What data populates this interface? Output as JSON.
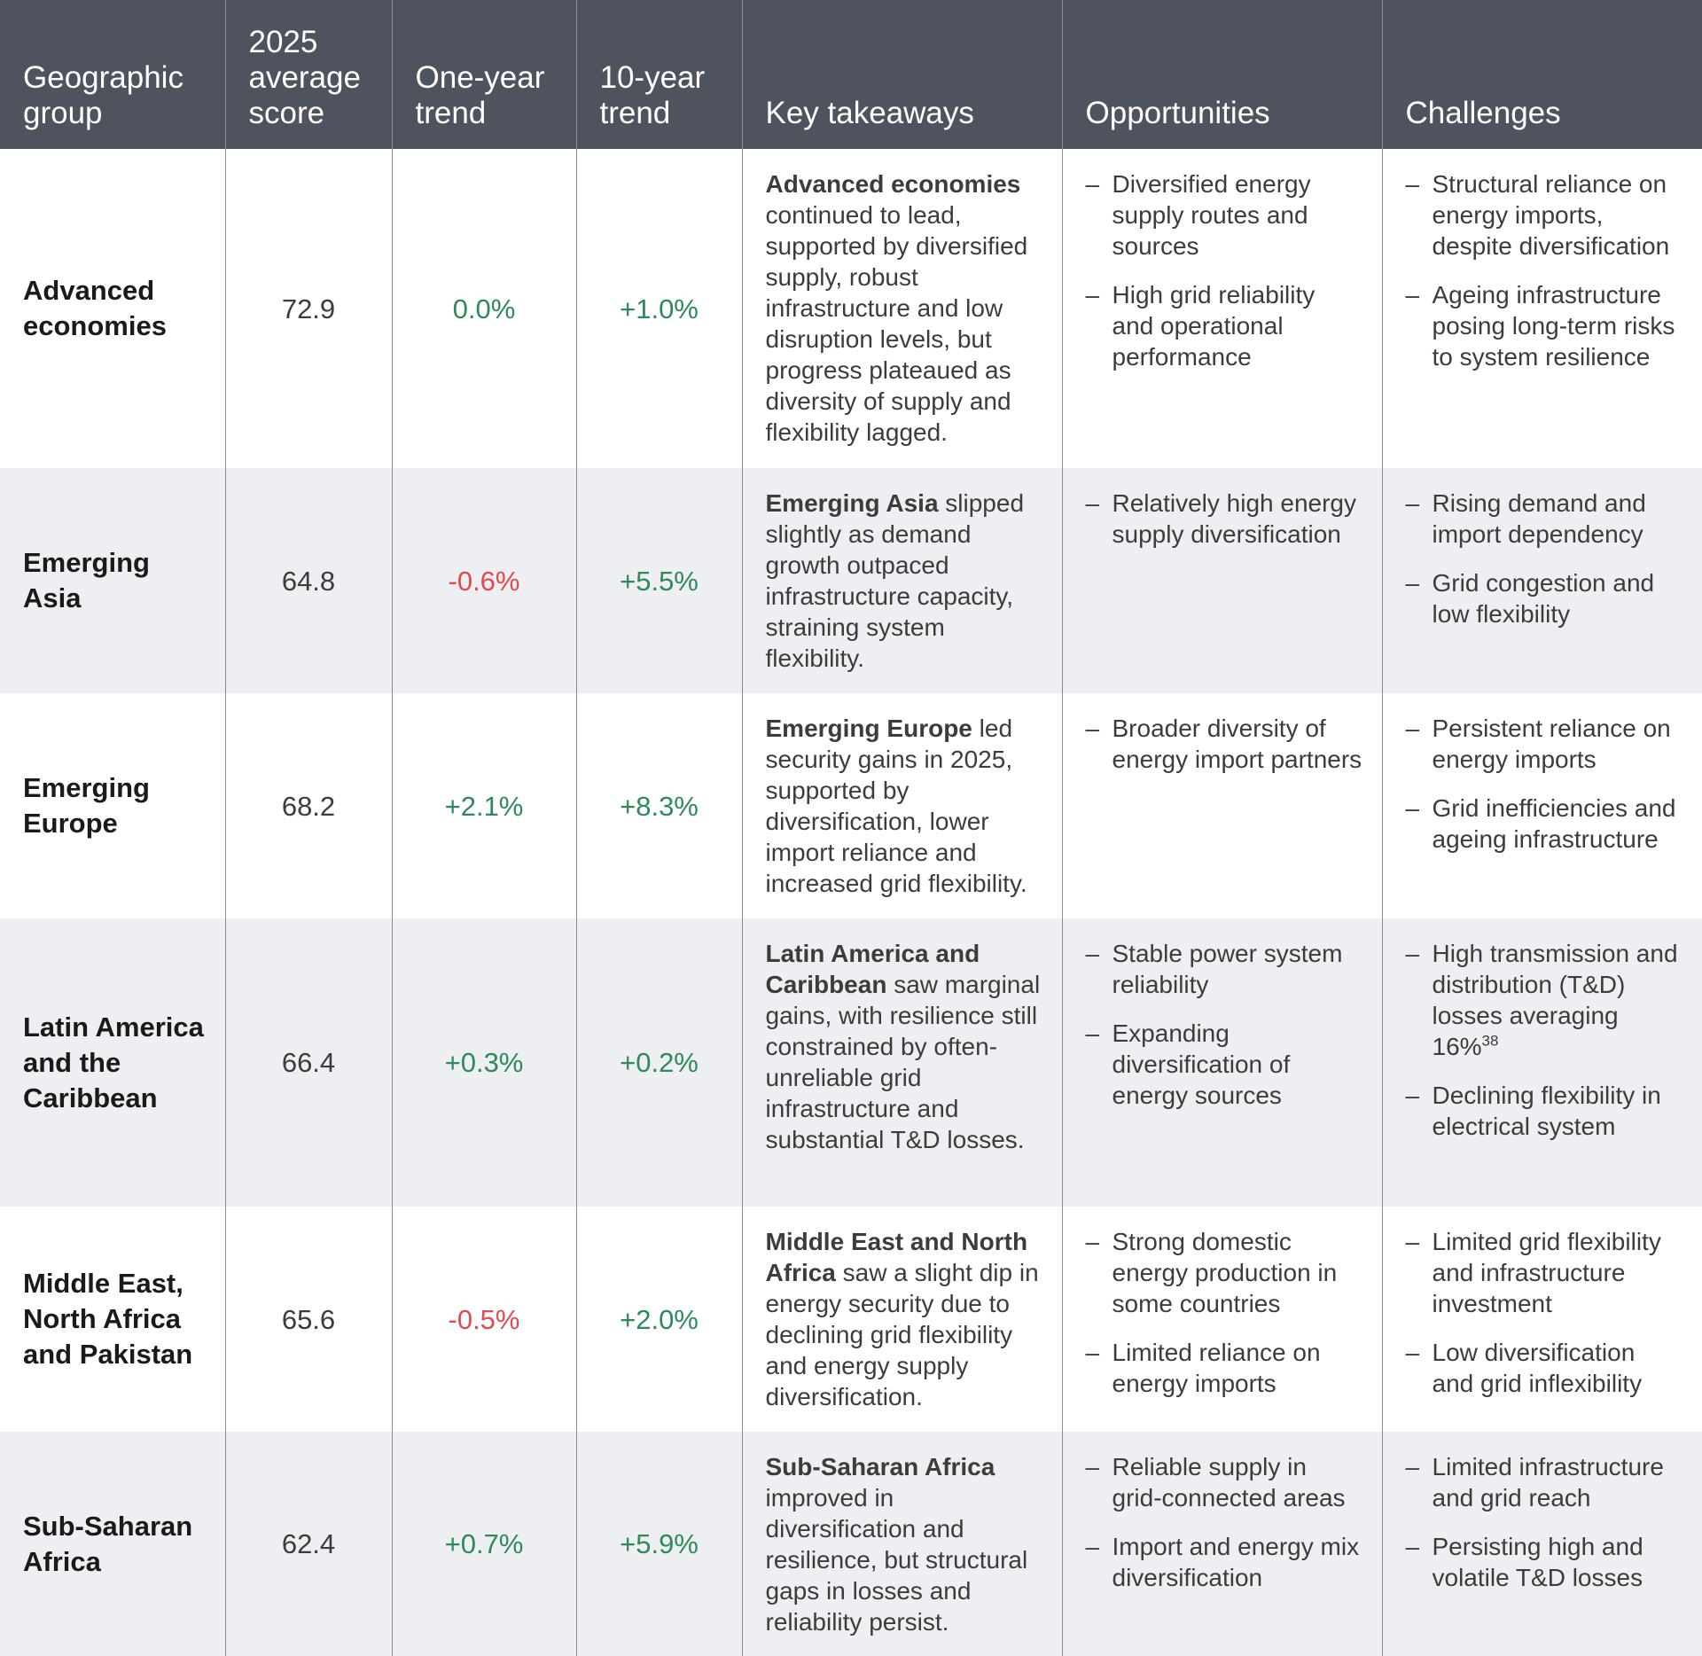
{
  "headers": [
    "Geographic group",
    "2025 average score",
    "One-year trend",
    "10-year trend",
    "Key takeaways",
    "Opportunities",
    "Challenges"
  ],
  "bullet": "–",
  "colors": {
    "header_bg": "#4f535e",
    "positive": "#2e8b57",
    "negative": "#e5484d",
    "row_shade": "#eeeff2"
  },
  "rows": [
    {
      "group": "Advanced economies",
      "score": "72.9",
      "one_year": "0.0%",
      "ten_year": "+1.0%",
      "takeaway_bold": "Advanced economies",
      "takeaway_rest": "continued to lead, supported by diversified supply, robust infrastructure and low disruption levels, but progress plateaued as diversity of supply and flexibility lagged.",
      "opportunities": [
        "Diversified energy supply routes and sources",
        "High grid reliability and operational performance"
      ],
      "challenges": [
        "Structural reliance on energy imports, despite diversification",
        "Ageing infrastructure posing long-term risks to system resilience"
      ]
    },
    {
      "group": "Emerging Asia",
      "score": "64.8",
      "one_year": "-0.6%",
      "ten_year": "+5.5%",
      "takeaway_bold": "Emerging Asia",
      "takeaway_rest": "slipped slightly as demand growth outpaced infrastructure capacity, straining system flexibility.",
      "opportunities": [
        "Relatively high energy supply diversification"
      ],
      "challenges": [
        "Rising demand and import dependency",
        "Grid congestion and low flexibility"
      ]
    },
    {
      "group": "Emerging Europe",
      "score": "68.2",
      "one_year": "+2.1%",
      "ten_year": "+8.3%",
      "takeaway_bold": "Emerging Europe",
      "takeaway_rest": "led security gains in 2025, supported by diversification, lower import reliance and increased grid flexibility.",
      "opportunities": [
        "Broader diversity of energy import partners"
      ],
      "challenges": [
        "Persistent reliance on energy imports",
        "Grid inefficiencies and ageing infrastructure"
      ]
    },
    {
      "group": "Latin America and the Caribbean",
      "score": "66.4",
      "one_year": "+0.3%",
      "ten_year": "+0.2%",
      "takeaway_bold": "Latin America and Caribbean",
      "takeaway_rest": "saw marginal gains, with resilience still constrained by often-unreliable grid infrastructure and substantial T&D losses.",
      "opportunities": [
        "Stable power system reliability",
        "Expanding diversification of energy sources"
      ],
      "challenges": [
        "High transmission and distribution (T&D) losses averaging 16%",
        "Declining flexibility in electrical system"
      ],
      "challenge_footnote": "38"
    },
    {
      "group": "Middle East, North Africa and Pakistan",
      "score": "65.6",
      "one_year": "-0.5%",
      "ten_year": "+2.0%",
      "takeaway_bold": "Middle East and North Africa",
      "takeaway_rest": "saw a slight dip in energy security due to declining grid flexibility and energy supply diversification.",
      "opportunities": [
        "Strong domestic energy production in some countries",
        "Limited reliance on energy imports"
      ],
      "challenges": [
        "Limited grid flexibility and infrastructure investment",
        "Low diversification and grid inflexibility"
      ]
    },
    {
      "group": "Sub-Saharan Africa",
      "score": "62.4",
      "one_year": "+0.7%",
      "ten_year": "+5.9%",
      "takeaway_bold": "Sub-Saharan Africa",
      "takeaway_rest": "improved in diversification and resilience, but structural gaps in losses and reliability persist.",
      "opportunities": [
        "Reliable supply in grid-connected areas",
        "Import and energy mix diversification"
      ],
      "challenges": [
        "Limited infrastructure and grid reach",
        "Persisting high and volatile T&D losses"
      ]
    }
  ]
}
